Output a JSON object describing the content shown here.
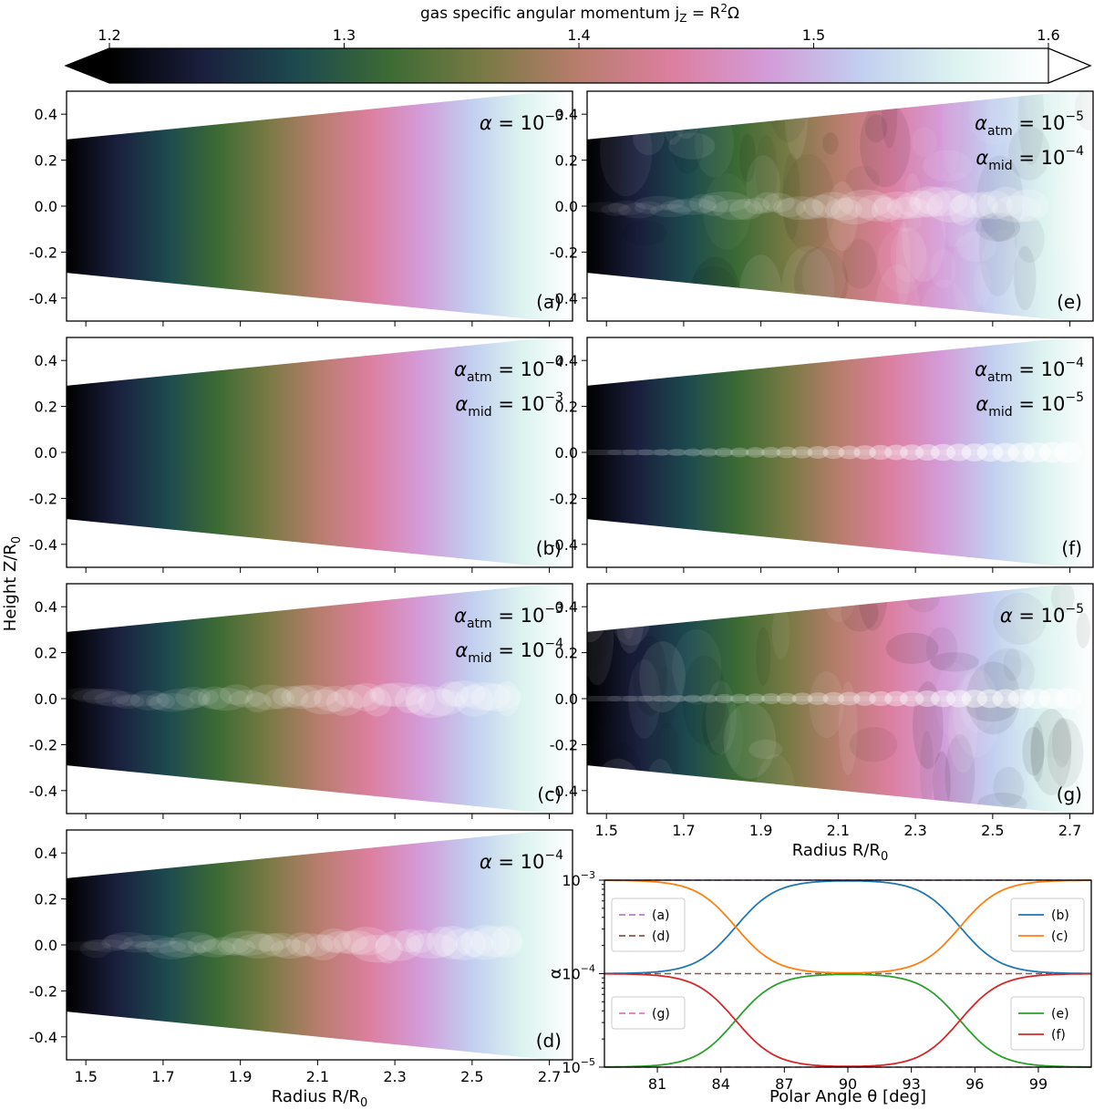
{
  "colorbar": {
    "title": "gas specific angular momentum  j",
    "title_sub": "Z",
    "title_rest": " = R",
    "title_sup": "2",
    "title_end": "Ω",
    "ticks": [
      "1.2",
      "1.3",
      "1.4",
      "1.5",
      "1.6"
    ],
    "tick_values": [
      1.2,
      1.3,
      1.4,
      1.5,
      1.6
    ],
    "range": [
      1.2,
      1.6
    ],
    "colors": [
      "#000000",
      "#1a1f3d",
      "#1d4a4f",
      "#3d6b34",
      "#7a7a45",
      "#b87d6d",
      "#dc7fa0",
      "#d49bd8",
      "#c2cef0",
      "#dcf3f0",
      "#ffffff"
    ]
  },
  "panels": [
    {
      "id": "a",
      "tag": "(a)",
      "label_lines": [
        {
          "sym": "α",
          "sub": "",
          "val": "10",
          "exp": "−3"
        }
      ],
      "turbulent": false,
      "midplane": "none"
    },
    {
      "id": "b",
      "tag": "(b)",
      "label_lines": [
        {
          "sym": "α",
          "sub": "atm",
          "val": "10",
          "exp": "−4"
        },
        {
          "sym": "α",
          "sub": "mid",
          "val": "10",
          "exp": "−3"
        }
      ],
      "turbulent": false,
      "midplane": "none"
    },
    {
      "id": "c",
      "tag": "(c)",
      "label_lines": [
        {
          "sym": "α",
          "sub": "atm",
          "val": "10",
          "exp": "−3"
        },
        {
          "sym": "α",
          "sub": "mid",
          "val": "10",
          "exp": "−4"
        }
      ],
      "turbulent": false,
      "midplane": "wavy"
    },
    {
      "id": "d",
      "tag": "(d)",
      "label_lines": [
        {
          "sym": "α",
          "sub": "",
          "val": "10",
          "exp": "−4"
        }
      ],
      "turbulent": false,
      "midplane": "wavy"
    },
    {
      "id": "e",
      "tag": "(e)",
      "label_lines": [
        {
          "sym": "α",
          "sub": "atm",
          "val": "10",
          "exp": "−5"
        },
        {
          "sym": "α",
          "sub": "mid",
          "val": "10",
          "exp": "−4"
        }
      ],
      "turbulent": true,
      "midplane": "wavy"
    },
    {
      "id": "f",
      "tag": "(f)",
      "label_lines": [
        {
          "sym": "α",
          "sub": "atm",
          "val": "10",
          "exp": "−4"
        },
        {
          "sym": "α",
          "sub": "mid",
          "val": "10",
          "exp": "−5"
        }
      ],
      "turbulent": false,
      "midplane": "beads"
    },
    {
      "id": "g",
      "tag": "(g)",
      "label_lines": [
        {
          "sym": "α",
          "sub": "",
          "val": "10",
          "exp": "−5"
        }
      ],
      "turbulent": true,
      "midplane": "beads"
    }
  ],
  "map_axes": {
    "ylabel": "Height Z/R",
    "ylabel_sub": "0",
    "xlabel": "Radius R/R",
    "xlabel_sub": "0",
    "xticks": [
      "1.5",
      "1.7",
      "1.9",
      "2.1",
      "2.3",
      "2.5",
      "2.7"
    ],
    "xtick_values": [
      1.5,
      1.7,
      1.9,
      2.1,
      2.3,
      2.5,
      2.7
    ],
    "yticks": [
      "0.4",
      "0.2",
      "0.0",
      "-0.2",
      "-0.4"
    ],
    "ytick_values": [
      0.4,
      0.2,
      0.0,
      -0.2,
      -0.4
    ],
    "xlim": [
      1.45,
      2.76
    ],
    "ylim": [
      -0.5,
      0.5
    ]
  },
  "chart_data": {
    "type": "line",
    "xlabel": "Polar Angle θ [deg]",
    "ylabel": "α",
    "xlim": [
      78.5,
      101.5
    ],
    "ylim": [
      1e-05,
      0.001
    ],
    "yscale": "log",
    "xticks": [
      "81",
      "84",
      "87",
      "90",
      "93",
      "96",
      "99"
    ],
    "xtick_values": [
      81,
      84,
      87,
      90,
      93,
      96,
      99
    ],
    "yticks": [
      {
        "base": "10",
        "exp": "−3",
        "value": 0.001
      },
      {
        "base": "10",
        "exp": "−4",
        "value": 0.0001
      },
      {
        "base": "10",
        "exp": "−5",
        "value": 1e-05
      }
    ],
    "series": [
      {
        "name": "(a)",
        "color": "#b77bd4",
        "style": "dashed",
        "kind": "const",
        "value": 0.001
      },
      {
        "name": "(d)",
        "color": "#8c564b",
        "style": "dashed",
        "kind": "const",
        "value": 0.0001
      },
      {
        "name": "(g)",
        "color": "#e377c2",
        "style": "dashed",
        "kind": "const",
        "value": 1e-05
      },
      {
        "name": "(b)",
        "color": "#1f77b4",
        "style": "solid",
        "kind": "step",
        "atm": 0.0001,
        "mid": 0.001
      },
      {
        "name": "(c)",
        "color": "#ff7f0e",
        "style": "solid",
        "kind": "step",
        "atm": 0.001,
        "mid": 0.0001
      },
      {
        "name": "(e)",
        "color": "#2ca02c",
        "style": "solid",
        "kind": "step",
        "atm": 1e-05,
        "mid": 0.0001
      },
      {
        "name": "(f)",
        "color": "#d62728",
        "style": "solid",
        "kind": "step",
        "atm": 0.0001,
        "mid": 1e-05
      }
    ],
    "transition_centers": [
      84.7,
      95.3
    ],
    "legends": [
      {
        "position": "upper-left",
        "entries": [
          "(a)",
          "(d)"
        ]
      },
      {
        "position": "upper-right",
        "entries": [
          "(b)",
          "(c)"
        ]
      },
      {
        "position": "lower-left",
        "entries": [
          "(g)"
        ]
      },
      {
        "position": "lower-right",
        "entries": [
          "(e)",
          "(f)"
        ]
      }
    ]
  }
}
